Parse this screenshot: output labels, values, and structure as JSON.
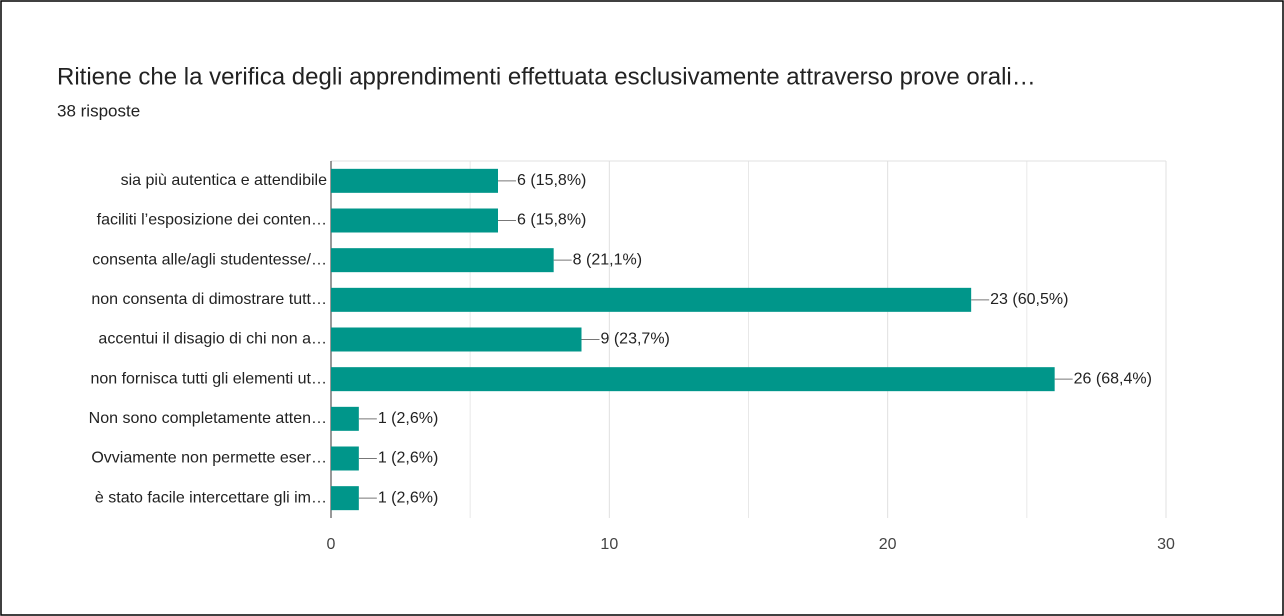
{
  "chart_data": {
    "type": "bar",
    "orientation": "horizontal",
    "title": "Ritiene che la verifica degli apprendimenti effettuata esclusivamente attraverso prove orali…",
    "subtitle": "38 risposte",
    "categories": [
      "sia più autentica e attendibile",
      "faciliti l’esposizione dei conten…",
      "consenta alle/agli studentesse/…",
      "non consenta di dimostrare tutt…",
      "accentui il disagio di chi non a…",
      "non fornisca tutti gli elementi ut…",
      "Non sono completamente atten…",
      "Ovviamente non permette eser…",
      "è stato facile intercettare gli im…"
    ],
    "values": [
      6,
      6,
      8,
      23,
      9,
      26,
      1,
      1,
      1
    ],
    "value_labels": [
      "6 (15,8%)",
      "6 (15,8%)",
      "8 (21,1%)",
      "23 (60,5%)",
      "9 (23,7%)",
      "26 (68,4%)",
      "1 (2,6%)",
      "1 (2,6%)",
      "1 (2,6%)"
    ],
    "color": "#00968a",
    "xlim": [
      0,
      30
    ],
    "xticks": [
      0,
      10,
      20,
      30
    ],
    "minor_xticks": [
      5,
      15,
      25
    ],
    "grid": true
  }
}
